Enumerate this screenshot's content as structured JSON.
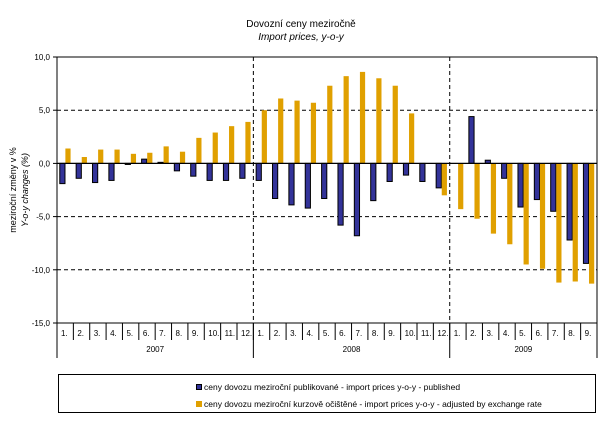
{
  "chart_data": {
    "type": "bar",
    "title": "Dovozní ceny meziročně",
    "subtitle": "Import prices, y-o-y",
    "xlabel": "",
    "ylabel": [
      "meziroční změny v %",
      "Y-o-y changes (%)"
    ],
    "ylim": [
      -15,
      10
    ],
    "yticks": [
      10,
      5,
      0,
      -5,
      -10,
      -15
    ],
    "ytick_labels": [
      "10,0",
      "5,0",
      "0,0",
      "-5,0",
      "-10,0",
      "-15,0"
    ],
    "grid": "dashed horizontal at 5 and -5/-10; dashed vertical year separators",
    "years": [
      {
        "label": "2007",
        "months": 12
      },
      {
        "label": "2008",
        "months": 12
      },
      {
        "label": "2009",
        "months": 9
      }
    ],
    "categories": [
      "1.",
      "2.",
      "3.",
      "4.",
      "5.",
      "6.",
      "7.",
      "8.",
      "9.",
      "10.",
      "11.",
      "12.",
      "1.",
      "2.",
      "3.",
      "4.",
      "5.",
      "6.",
      "7.",
      "8.",
      "9.",
      "10.",
      "11.",
      "12.",
      "1.",
      "2.",
      "3.",
      "4.",
      "5.",
      "6.",
      "7.",
      "8.",
      "9."
    ],
    "series": [
      {
        "name": "ceny dovozu meziroční publikované - import prices y-o-y - published",
        "color": "#333399",
        "values": [
          -1.9,
          -1.4,
          -1.8,
          -1.6,
          -0.1,
          0.4,
          0.1,
          -0.7,
          -1.2,
          -1.6,
          -1.6,
          -1.4,
          -1.6,
          -3.3,
          -3.9,
          -4.2,
          -3.3,
          -5.8,
          -6.8,
          -3.5,
          -1.7,
          -1.1,
          -1.7,
          -2.3,
          0.0,
          4.4,
          0.3,
          -1.4,
          -4.1,
          -3.4,
          -4.5,
          -7.2,
          -9.4
        ]
      },
      {
        "name": "ceny dovozu meziroční kurzově očištěné - import prices y-o-y - adjusted by exchange rate",
        "color": "#E0A000",
        "values": [
          1.4,
          0.6,
          1.3,
          1.3,
          0.9,
          1.0,
          1.6,
          1.1,
          2.4,
          2.9,
          3.5,
          3.9,
          5.0,
          6.1,
          5.9,
          5.7,
          7.3,
          8.2,
          8.6,
          8.0,
          7.3,
          4.7,
          0.0,
          -3.0,
          -4.3,
          -5.2,
          -6.6,
          -7.6,
          -9.5,
          -9.9,
          -11.2,
          -11.1,
          -11.3
        ]
      }
    ],
    "legend": "bottom"
  }
}
